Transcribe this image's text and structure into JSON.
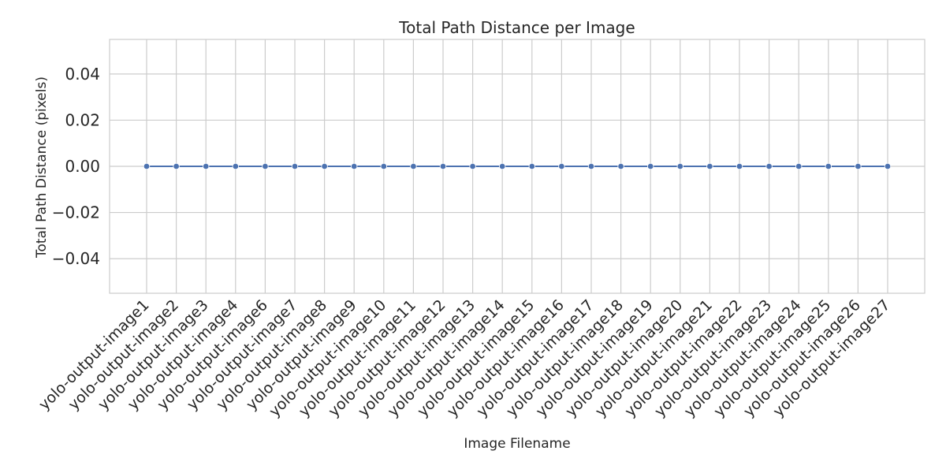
{
  "chart_data": {
    "type": "line",
    "title": "Total Path Distance per Image",
    "xlabel": "Image Filename",
    "ylabel": "Total Path Distance (pixels)",
    "categories": [
      "yolo-output-image1",
      "yolo-output-image2",
      "yolo-output-image3",
      "yolo-output-image4",
      "yolo-output-image6",
      "yolo-output-image7",
      "yolo-output-image8",
      "yolo-output-image9",
      "yolo-output-image10",
      "yolo-output-image11",
      "yolo-output-image12",
      "yolo-output-image13",
      "yolo-output-image14",
      "yolo-output-image15",
      "yolo-output-image16",
      "yolo-output-image17",
      "yolo-output-image18",
      "yolo-output-image19",
      "yolo-output-image20",
      "yolo-output-image21",
      "yolo-output-image22",
      "yolo-output-image23",
      "yolo-output-image24",
      "yolo-output-image25",
      "yolo-output-image26",
      "yolo-output-image27"
    ],
    "series": [
      {
        "values": [
          0,
          0,
          0,
          0,
          0,
          0,
          0,
          0,
          0,
          0,
          0,
          0,
          0,
          0,
          0,
          0,
          0,
          0,
          0,
          0,
          0,
          0,
          0,
          0,
          0,
          0
        ],
        "color": "#4c72b0"
      }
    ],
    "ylim": [
      -0.055,
      0.055
    ],
    "yticks": [
      -0.04,
      -0.02,
      0.0,
      0.02,
      0.04
    ],
    "ytick_labels": [
      "−0.04",
      "−0.02",
      "0.00",
      "0.02",
      "0.04"
    ],
    "grid": true,
    "marker": "circle"
  }
}
